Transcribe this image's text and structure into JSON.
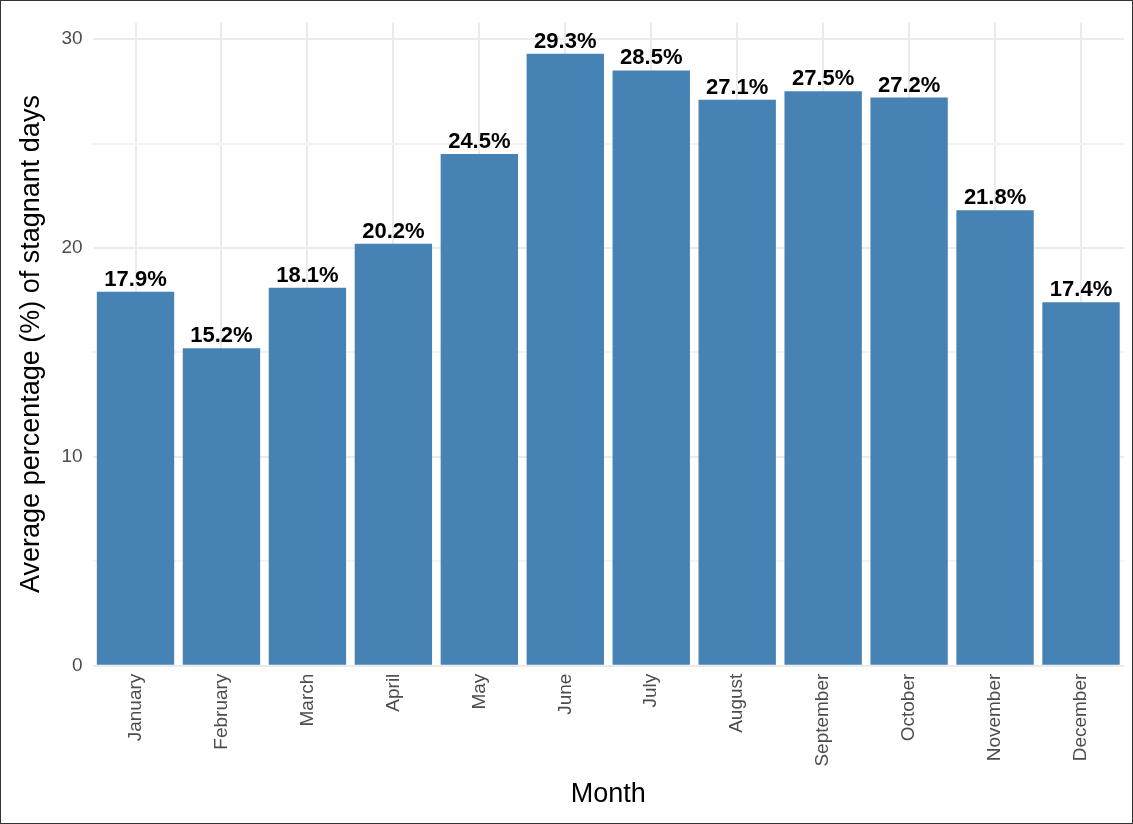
{
  "chart_data": {
    "type": "bar",
    "xlabel": "Month",
    "ylabel": "Average percentage (%) of stagnant days",
    "categories": [
      "January",
      "February",
      "March",
      "April",
      "May",
      "June",
      "July",
      "August",
      "September",
      "October",
      "November",
      "December"
    ],
    "values": [
      17.9,
      15.2,
      18.1,
      20.2,
      24.5,
      29.3,
      28.5,
      27.1,
      27.5,
      27.2,
      21.8,
      17.4
    ],
    "value_labels": [
      "17.9%",
      "15.2%",
      "18.1%",
      "20.2%",
      "24.5%",
      "29.3%",
      "28.5%",
      "27.1%",
      "27.5%",
      "27.2%",
      "21.8%",
      "17.4%"
    ],
    "color": "#4682b4",
    "ylim": [
      0,
      30.8
    ],
    "yticks": [
      0,
      {
        "value": 5,
        "label": null
      },
      10,
      {
        "value": 15,
        "label": null
      },
      20,
      {
        "value": 25,
        "label": null
      },
      30
    ],
    "grid": true
  }
}
